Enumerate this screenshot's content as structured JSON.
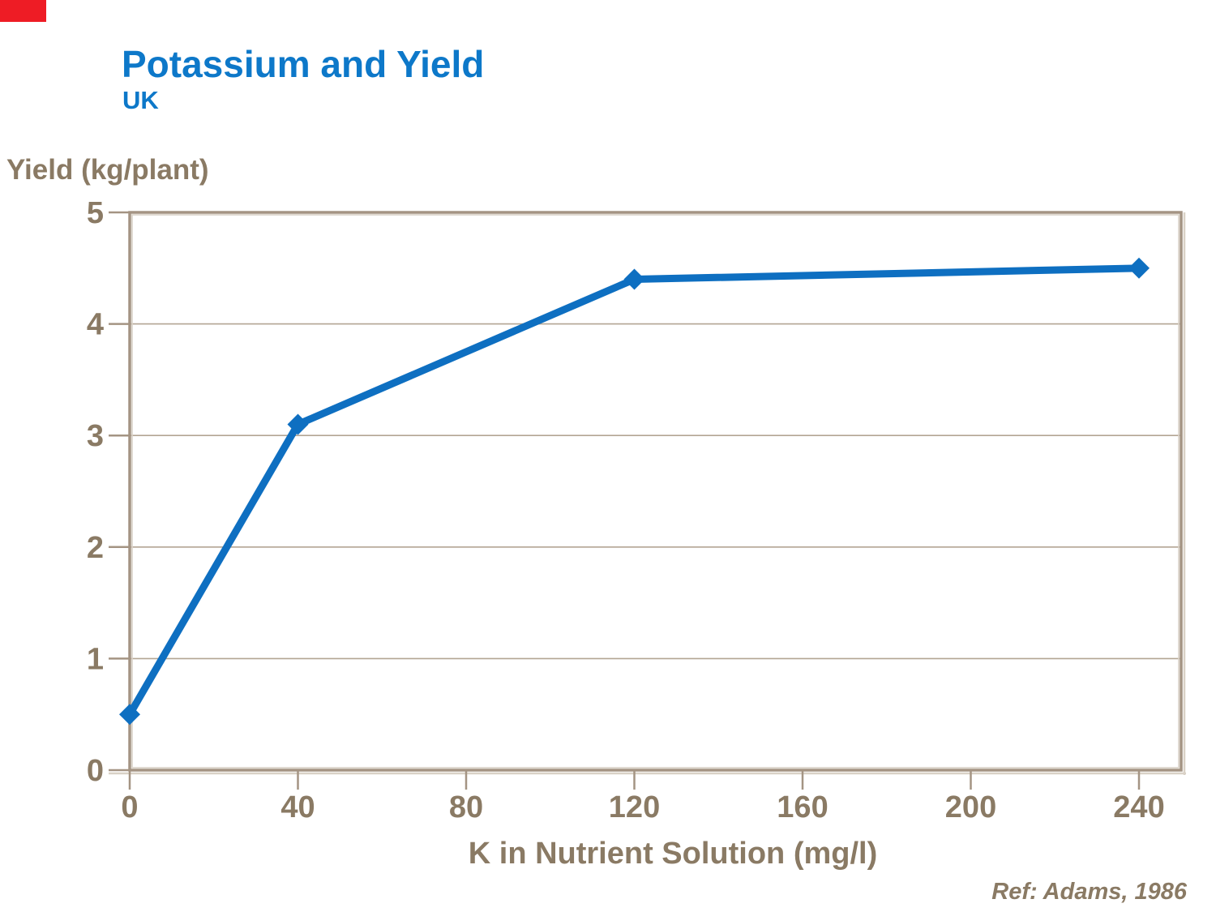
{
  "chart_data": {
    "type": "line",
    "title": "Potassium and Yield",
    "subtitle": "UK",
    "xlabel": "K in Nutrient Solution (mg/l)",
    "ylabel": "Yield (kg/plant)",
    "annotation": "Ref: Adams, 1986",
    "x": [
      0,
      40,
      120,
      240
    ],
    "values": [
      0.5,
      3.1,
      4.4,
      4.5
    ],
    "xlim": [
      0,
      240
    ],
    "ylim": [
      0,
      5
    ],
    "x_ticks": [
      0,
      40,
      80,
      120,
      160,
      200,
      240
    ],
    "y_ticks": [
      0,
      1,
      2,
      3,
      4,
      5
    ],
    "grid": "horizontal-only",
    "legend_position": "none",
    "marker": "diamond"
  },
  "colors": {
    "accent_red": "#ee1c25",
    "title_blue": "#0d78c9",
    "line_blue": "#0e6fc1",
    "text_brown": "#8a7a64",
    "axis_frame": "#a49483",
    "axis_highlight": "#d9d1c6",
    "gridline": "#b3a593",
    "background": "#ffffff"
  }
}
